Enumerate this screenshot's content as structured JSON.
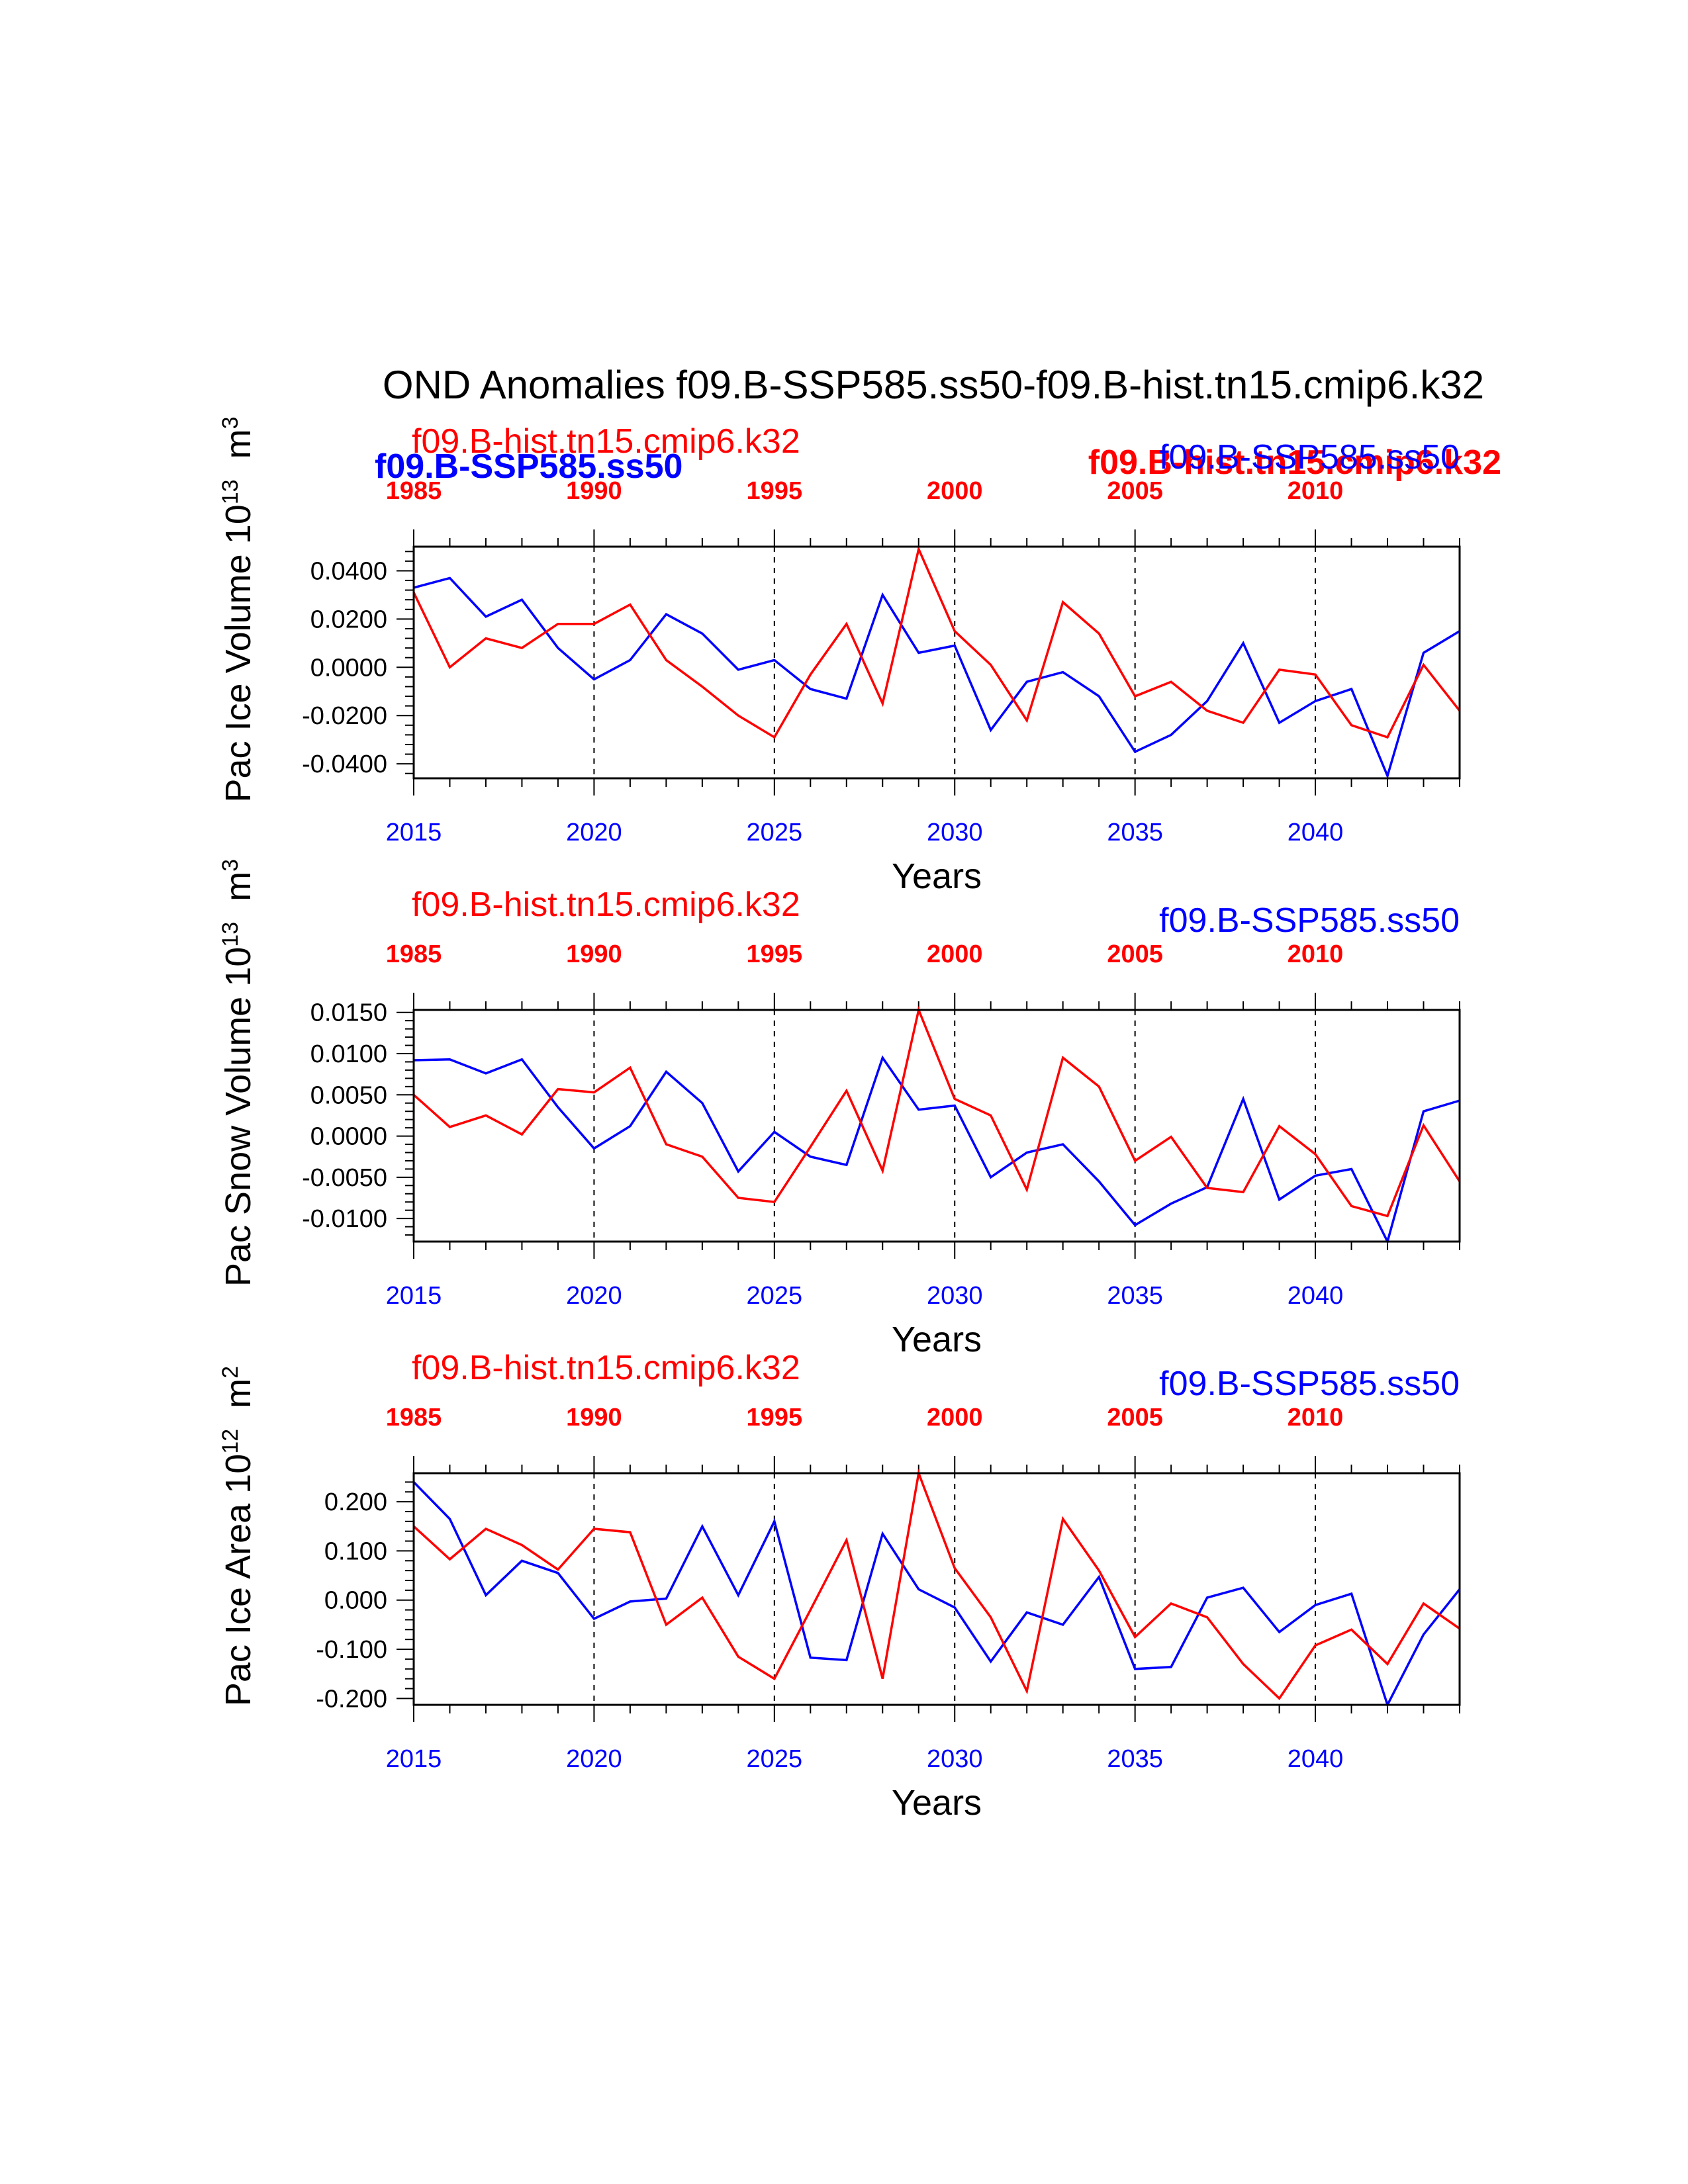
{
  "title": "OND Anomalies f09.B-SSP585.ss50-f09.B-hist.tn15.cmip6.k32",
  "colors": {
    "ssp": "#0000ff",
    "hist": "#ff0000",
    "axis": "#000000"
  },
  "legend_extra": {
    "ssp_bold": "f09.B-SSP585.ss50",
    "hist_bold": "f09.B-hist.tn15.cmip6.k32"
  },
  "chart_data": [
    {
      "type": "line",
      "ylabel": "Pac Ice Volume 10^13 m^3",
      "ylabel_base": "Pac Ice Volume 10",
      "ylabel_exp": "13",
      "ylabel_unit": "m",
      "ylabel_unit_exp": "3",
      "xlabel": "Years",
      "ylim": [
        -0.046,
        0.05
      ],
      "yticks": [
        -0.04,
        -0.02,
        0.0,
        0.02,
        0.04
      ],
      "ytick_labels": [
        "-0.0400",
        "-0.0200",
        "0.0000",
        "0.0200",
        "0.0400"
      ],
      "bottom_labels": [
        "2015",
        "2020",
        "2025",
        "2030",
        "2035",
        "2040"
      ],
      "top_labels": [
        "1985",
        "1990",
        "1995",
        "2000",
        "2005",
        "2010"
      ],
      "hist_label": "f09.B-hist.tn15.cmip6.k32",
      "ssp_label": "f09.B-SSP585.ss50",
      "series": [
        {
          "name": "f09.B-SSP585.ss50",
          "x": [
            2015,
            2016,
            2017,
            2018,
            2019,
            2020,
            2021,
            2022,
            2023,
            2024,
            2025,
            2026,
            2027,
            2028,
            2029,
            2030,
            2031,
            2032,
            2033,
            2034,
            2035,
            2036,
            2037,
            2038,
            2039,
            2040,
            2041,
            2042,
            2043,
            2044
          ],
          "values": [
            0.033,
            0.037,
            0.021,
            0.028,
            0.008,
            -0.005,
            0.003,
            0.022,
            0.014,
            -0.001,
            0.003,
            -0.009,
            -0.013,
            0.03,
            0.006,
            0.009,
            -0.026,
            -0.006,
            -0.002,
            -0.012,
            -0.035,
            -0.028,
            -0.014,
            0.01,
            -0.023,
            -0.014,
            -0.009,
            -0.045,
            0.006,
            0.015
          ]
        },
        {
          "name": "f09.B-hist.tn15.cmip6.k32",
          "x": [
            2015,
            2016,
            2017,
            2018,
            2019,
            2020,
            2021,
            2022,
            2023,
            2024,
            2025,
            2026,
            2027,
            2028,
            2029,
            2030,
            2031,
            2032,
            2033,
            2034,
            2035,
            2036,
            2037,
            2038,
            2039,
            2040,
            2041,
            2042,
            2043,
            2044
          ],
          "values": [
            0.031,
            0.0,
            0.012,
            0.008,
            0.018,
            0.018,
            0.026,
            0.003,
            -0.008,
            -0.02,
            -0.029,
            -0.003,
            0.018,
            -0.015,
            0.049,
            0.015,
            0.001,
            -0.022,
            0.027,
            0.014,
            -0.012,
            -0.006,
            -0.018,
            -0.023,
            -0.001,
            -0.003,
            -0.024,
            -0.029,
            0.001,
            -0.018
          ]
        }
      ]
    },
    {
      "type": "line",
      "ylabel": "Pac Snow Volume 10^13 m^3",
      "ylabel_base": "Pac Snow Volume 10",
      "ylabel_exp": "13",
      "ylabel_unit": "m",
      "ylabel_unit_exp": "3",
      "xlabel": "Years",
      "ylim": [
        -0.0128,
        0.0153
      ],
      "yticks": [
        -0.01,
        -0.005,
        0.0,
        0.005,
        0.01,
        0.015
      ],
      "ytick_labels": [
        "-0.0100",
        "-0.0050",
        "0.0000",
        "0.0050",
        "0.0100",
        "0.0150"
      ],
      "bottom_labels": [
        "2015",
        "2020",
        "2025",
        "2030",
        "2035",
        "2040"
      ],
      "top_labels": [
        "1985",
        "1990",
        "1995",
        "2000",
        "2005",
        "2010"
      ],
      "hist_label": "f09.B-hist.tn15.cmip6.k32",
      "ssp_label": "f09.B-SSP585.ss50",
      "series": [
        {
          "name": "f09.B-SSP585.ss50",
          "x": [
            2015,
            2016,
            2017,
            2018,
            2019,
            2020,
            2021,
            2022,
            2023,
            2024,
            2025,
            2026,
            2027,
            2028,
            2029,
            2030,
            2031,
            2032,
            2033,
            2034,
            2035,
            2036,
            2037,
            2038,
            2039,
            2040,
            2041,
            2042,
            2043,
            2044
          ],
          "values": [
            0.0092,
            0.0093,
            0.0076,
            0.0093,
            0.0035,
            -0.0015,
            0.0012,
            0.0078,
            0.004,
            -0.0043,
            0.0005,
            -0.0025,
            -0.0035,
            0.0095,
            0.0032,
            0.0037,
            -0.005,
            -0.002,
            -0.001,
            -0.0055,
            -0.0108,
            -0.0082,
            -0.0062,
            0.0045,
            -0.0077,
            -0.0048,
            -0.004,
            -0.0128,
            0.003,
            0.0043
          ]
        },
        {
          "name": "f09.B-hist.tn15.cmip6.k32",
          "x": [
            2015,
            2016,
            2017,
            2018,
            2019,
            2020,
            2021,
            2022,
            2023,
            2024,
            2025,
            2026,
            2027,
            2028,
            2029,
            2030,
            2031,
            2032,
            2033,
            2034,
            2035,
            2036,
            2037,
            2038,
            2039,
            2040,
            2041,
            2042,
            2043,
            2044
          ],
          "values": [
            0.005,
            0.0011,
            0.0025,
            0.0002,
            0.0057,
            0.0053,
            0.0083,
            -0.001,
            -0.0025,
            -0.0075,
            -0.008,
            -0.0013,
            0.0055,
            -0.0042,
            0.0153,
            0.0045,
            0.0025,
            -0.0065,
            0.0095,
            0.006,
            -0.003,
            -0.0001,
            -0.0063,
            -0.0068,
            0.0012,
            -0.0022,
            -0.0085,
            -0.0097,
            0.0013,
            -0.0055
          ]
        }
      ]
    },
    {
      "type": "line",
      "ylabel": "Pac Ice Area 10^12 m^2",
      "ylabel_base": "Pac Ice Area 10",
      "ylabel_exp": "12",
      "ylabel_unit": "m",
      "ylabel_unit_exp": "2",
      "xlabel": "Years",
      "ylim": [
        -0.213,
        0.258
      ],
      "yticks": [
        -0.2,
        -0.1,
        0.0,
        0.1,
        0.2
      ],
      "ytick_labels": [
        "-0.200",
        "-0.100",
        "0.000",
        "0.100",
        "0.200"
      ],
      "bottom_labels": [
        "2015",
        "2020",
        "2025",
        "2030",
        "2035",
        "2040"
      ],
      "top_labels": [
        "1985",
        "1990",
        "1995",
        "2000",
        "2005",
        "2010"
      ],
      "hist_label": "f09.B-hist.tn15.cmip6.k32",
      "ssp_label": "f09.B-SSP585.ss50",
      "series": [
        {
          "name": "f09.B-SSP585.ss50",
          "x": [
            2015,
            2016,
            2017,
            2018,
            2019,
            2020,
            2021,
            2022,
            2023,
            2024,
            2025,
            2026,
            2027,
            2028,
            2029,
            2030,
            2031,
            2032,
            2033,
            2034,
            2035,
            2036,
            2037,
            2038,
            2039,
            2040,
            2041,
            2042,
            2043,
            2044
          ],
          "values": [
            0.24,
            0.165,
            0.01,
            0.08,
            0.055,
            -0.038,
            -0.003,
            0.003,
            0.15,
            0.01,
            0.16,
            -0.117,
            -0.122,
            0.135,
            0.022,
            -0.015,
            -0.125,
            -0.025,
            -0.05,
            0.047,
            -0.14,
            -0.136,
            0.005,
            0.025,
            -0.065,
            -0.01,
            0.013,
            -0.213,
            -0.07,
            0.022
          ]
        },
        {
          "name": "f09.B-hist.tn15.cmip6.k32",
          "x": [
            2015,
            2016,
            2017,
            2018,
            2019,
            2020,
            2021,
            2022,
            2023,
            2024,
            2025,
            2026,
            2027,
            2028,
            2029,
            2030,
            2031,
            2032,
            2033,
            2034,
            2035,
            2036,
            2037,
            2038,
            2039,
            2040,
            2041,
            2042,
            2043,
            2044
          ],
          "values": [
            0.15,
            0.083,
            0.145,
            0.112,
            0.062,
            0.145,
            0.138,
            -0.05,
            0.005,
            -0.115,
            -0.16,
            -0.02,
            0.122,
            -0.16,
            0.258,
            0.065,
            -0.035,
            -0.185,
            0.165,
            0.06,
            -0.075,
            -0.007,
            -0.035,
            -0.13,
            -0.2,
            -0.092,
            -0.06,
            -0.13,
            -0.007,
            -0.058
          ]
        }
      ]
    }
  ]
}
